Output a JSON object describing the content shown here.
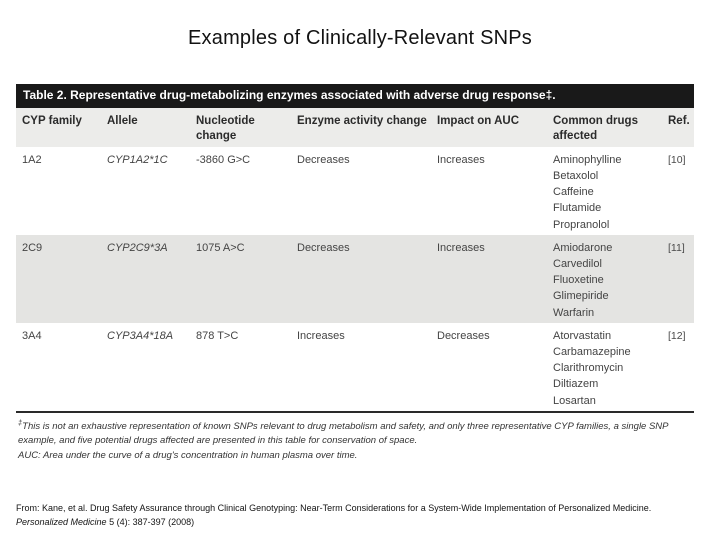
{
  "slide": {
    "title": "Examples of Clinically-Relevant SNPs"
  },
  "table": {
    "caption": "Table 2. Representative drug-metabolizing enzymes associated with adverse drug response‡.",
    "columns": [
      "CYP family",
      "Allele",
      "Nucleotide change",
      "Enzyme activity change",
      "Impact on AUC",
      "Common drugs affected",
      "Ref."
    ],
    "rows": [
      {
        "cyp_family": "1A2",
        "allele": "CYP1A2*1C",
        "nucleotide_change": "-3860 G>C",
        "enzyme_activity_change": "Decreases",
        "impact_on_auc": "Increases",
        "common_drugs_affected": [
          "Aminophylline",
          "Betaxolol",
          "Caffeine",
          "Flutamide",
          "Propranolol"
        ],
        "ref": "[10]"
      },
      {
        "cyp_family": "2C9",
        "allele": "CYP2C9*3A",
        "nucleotide_change": "1075 A>C",
        "enzyme_activity_change": "Decreases",
        "impact_on_auc": "Increases",
        "common_drugs_affected": [
          "Amiodarone",
          "Carvedilol",
          "Fluoxetine",
          "Glimepiride",
          "Warfarin"
        ],
        "ref": "[11]"
      },
      {
        "cyp_family": "3A4",
        "allele": "CYP3A4*18A",
        "nucleotide_change": "878 T>C",
        "enzyme_activity_change": "Increases",
        "impact_on_auc": "Decreases",
        "common_drugs_affected": [
          "Atorvastatin",
          "Carbamazepine",
          "Clarithromycin",
          "Diltiazem",
          "Losartan"
        ],
        "ref": "[12]"
      }
    ],
    "footnotes": [
      {
        "sup": "‡",
        "text": "This is not an exhaustive representation of known SNPs relevant to drug metabolism and safety, and only three representative CYP families, a single SNP example, and five potential drugs affected are presented in this table for conservation of space."
      },
      {
        "sup": "",
        "text": "AUC: Area under the curve of a drug's concentration in human plasma over time."
      }
    ]
  },
  "citation": {
    "line1": "From: Kane, et al. Drug Safety Assurance through Clinical Genotyping: Near-Term Considerations for a System-Wide Implementation of Personalized Medicine.",
    "journal": "Personalized Medicine",
    "line2_rest": " 5 (4): 387-397 (2008)"
  },
  "colors": {
    "caption_bar_bg": "#191919",
    "caption_text": "#ffffff",
    "header_bg": "#ececea",
    "row_shade_bg": "#e4e4e2",
    "body_text": "#444444",
    "rule": "#2a2a2a"
  }
}
